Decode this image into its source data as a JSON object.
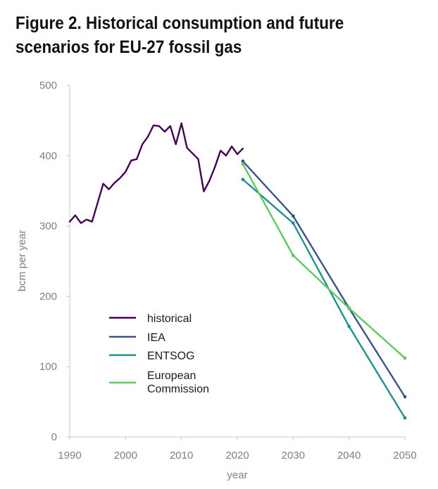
{
  "title": "Figure 2. Historical consumption and future scenarios for EU-27 fossil gas",
  "chart_data": {
    "type": "line",
    "xlabel": "year",
    "ylabel": "bcm per year",
    "xlim": [
      1990,
      2050
    ],
    "ylim": [
      0,
      500
    ],
    "x_ticks": [
      1990,
      2000,
      2010,
      2020,
      2030,
      2040,
      2050
    ],
    "y_ticks": [
      0,
      100,
      200,
      300,
      400,
      500
    ],
    "grid": false,
    "legend_position": "lower-left",
    "series": [
      {
        "name": "historical",
        "color": "#440154",
        "points": [
          [
            1990,
            306
          ],
          [
            1991,
            315
          ],
          [
            1992,
            304
          ],
          [
            1993,
            309
          ],
          [
            1994,
            306
          ],
          [
            1995,
            333
          ],
          [
            1996,
            360
          ],
          [
            1997,
            352
          ],
          [
            1998,
            361
          ],
          [
            1999,
            368
          ],
          [
            2000,
            377
          ],
          [
            2001,
            393
          ],
          [
            2002,
            395
          ],
          [
            2003,
            416
          ],
          [
            2004,
            427
          ],
          [
            2005,
            443
          ],
          [
            2006,
            442
          ],
          [
            2007,
            434
          ],
          [
            2008,
            442
          ],
          [
            2009,
            416
          ],
          [
            2010,
            446
          ],
          [
            2011,
            411
          ],
          [
            2012,
            403
          ],
          [
            2013,
            395
          ],
          [
            2014,
            349
          ],
          [
            2015,
            364
          ],
          [
            2016,
            384
          ],
          [
            2017,
            407
          ],
          [
            2018,
            400
          ],
          [
            2019,
            413
          ],
          [
            2020,
            402
          ],
          [
            2021,
            410
          ]
        ]
      },
      {
        "name": "IEA",
        "color": "#3b528b",
        "points": [
          [
            2021,
            392
          ],
          [
            2030,
            314
          ],
          [
            2040,
            183
          ],
          [
            2050,
            57
          ]
        ]
      },
      {
        "name": "ENTSOG",
        "color": "#21918c",
        "points": [
          [
            2021,
            366
          ],
          [
            2030,
            304
          ],
          [
            2040,
            157
          ],
          [
            2050,
            27
          ]
        ]
      },
      {
        "name": "European Commission",
        "legend_lines": [
          "European",
          "Commission"
        ],
        "color": "#5ec962",
        "points": [
          [
            2021,
            388
          ],
          [
            2030,
            258
          ],
          [
            2040,
            183
          ],
          [
            2050,
            112
          ]
        ]
      }
    ]
  }
}
